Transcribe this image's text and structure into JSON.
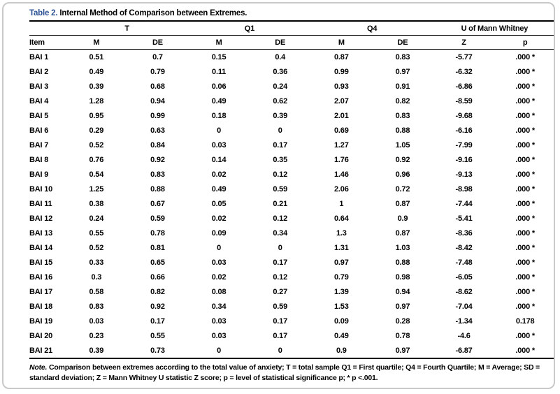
{
  "caption": {
    "label": "Table 2.",
    "text": " Internal Method of Comparison between Extremes."
  },
  "table": {
    "group_headers": [
      "T",
      "Q1",
      "Q4",
      "U of Mann Whitney"
    ],
    "column_headers": [
      "Item",
      "M",
      "DE",
      "M",
      "DE",
      "M",
      "DE",
      "Z",
      "p"
    ],
    "rows": [
      [
        "BAI 1",
        "0.51",
        "0.7",
        "0.15",
        "0.4",
        "0.87",
        "0.83",
        "-5.77",
        ".000 *"
      ],
      [
        "BAI 2",
        "0.49",
        "0.79",
        "0.11",
        "0.36",
        "0.99",
        "0.97",
        "-6.32",
        ".000 *"
      ],
      [
        "BAI 3",
        "0.39",
        "0.68",
        "0.06",
        "0.24",
        "0.93",
        "0.91",
        "-6.86",
        ".000 *"
      ],
      [
        "BAI 4",
        "1.28",
        "0.94",
        "0.49",
        "0.62",
        "2.07",
        "0.82",
        "-8.59",
        ".000 *"
      ],
      [
        "BAI 5",
        "0.95",
        "0.99",
        "0.18",
        "0.39",
        "2.01",
        "0.83",
        "-9.68",
        ".000 *"
      ],
      [
        "BAI 6",
        "0.29",
        "0.63",
        "0",
        "0",
        "0.69",
        "0.88",
        "-6.16",
        ".000 *"
      ],
      [
        "BAI 7",
        "0.52",
        "0.84",
        "0.03",
        "0.17",
        "1.27",
        "1.05",
        "-7.99",
        ".000 *"
      ],
      [
        "BAI 8",
        "0.76",
        "0.92",
        "0.14",
        "0.35",
        "1.76",
        "0.92",
        "-9.16",
        ".000 *"
      ],
      [
        "BAI 9",
        "0.54",
        "0.83",
        "0.02",
        "0.12",
        "1.46",
        "0.96",
        "-9.13",
        ".000 *"
      ],
      [
        "BAI 10",
        "1.25",
        "0.88",
        "0.49",
        "0.59",
        "2.06",
        "0.72",
        "-8.98",
        ".000 *"
      ],
      [
        "BAI 11",
        "0.38",
        "0.67",
        "0.05",
        "0.21",
        "1",
        "0.87",
        "-7.44",
        ".000 *"
      ],
      [
        "BAI 12",
        "0.24",
        "0.59",
        "0.02",
        "0.12",
        "0.64",
        "0.9",
        "-5.41",
        ".000 *"
      ],
      [
        "BAI 13",
        "0.55",
        "0.78",
        "0.09",
        "0.34",
        "1.3",
        "0.87",
        "-8.36",
        ".000 *"
      ],
      [
        "BAI 14",
        "0.52",
        "0.81",
        "0",
        "0",
        "1.31",
        "1.03",
        "-8.42",
        ".000 *"
      ],
      [
        "BAI 15",
        "0.33",
        "0.65",
        "0.03",
        "0.17",
        "0.97",
        "0.88",
        "-7.48",
        ".000 *"
      ],
      [
        "BAI 16",
        "0.3",
        "0.66",
        "0.02",
        "0.12",
        "0.79",
        "0.98",
        "-6.05",
        ".000 *"
      ],
      [
        "BAI 17",
        "0.58",
        "0.82",
        "0.08",
        "0.27",
        "1.39",
        "0.94",
        "-8.62",
        ".000 *"
      ],
      [
        "BAI 18",
        "0.83",
        "0.92",
        "0.34",
        "0.59",
        "1.53",
        "0.97",
        "-7.04",
        ".000 *"
      ],
      [
        "BAI 19",
        "0.03",
        "0.17",
        "0.03",
        "0.17",
        "0.09",
        "0.28",
        "-1.34",
        "0.178"
      ],
      [
        "BAI 20",
        "0.23",
        "0.55",
        "0.03",
        "0.17",
        "0.49",
        "0.78",
        "-4.6",
        ".000 *"
      ],
      [
        "BAI 21",
        "0.39",
        "0.73",
        "0",
        "0",
        "0.9",
        "0.97",
        "-6.87",
        ".000 *"
      ]
    ]
  },
  "note": {
    "label": "Note.",
    "text": " Comparison between extremes according to the total value of anxiety; T = total sample Q1 = First quartile; Q4 = Fourth Quartile; M = Average; SD = standard deviation; Z = Mann Whitney U statistic Z score; p = level of statistical significance p; * p <.001."
  },
  "colors": {
    "caption_accent": "#2E5395",
    "rule": "#000000",
    "card_border": "#C9C9C9"
  }
}
